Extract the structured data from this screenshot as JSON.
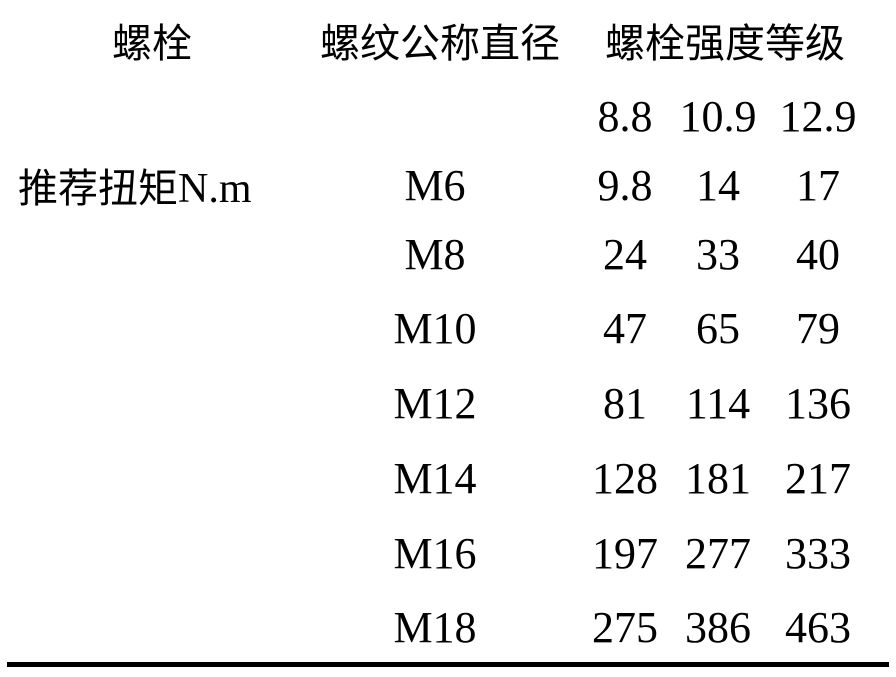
{
  "headers": {
    "bolt": "螺栓",
    "thread": "螺纹公称直径",
    "grade": "螺栓强度等级"
  },
  "grades": [
    "8.8",
    "10.9",
    "12.9"
  ],
  "row_label": {
    "text": "推荐扭矩",
    "unit": "N.m"
  },
  "rows": [
    {
      "size": "M6",
      "values": [
        "9.8",
        "14",
        "17"
      ]
    },
    {
      "size": "M8",
      "values": [
        "24",
        "33",
        "40"
      ]
    },
    {
      "size": "M10",
      "values": [
        "47",
        "65",
        "79"
      ]
    },
    {
      "size": "M12",
      "values": [
        "81",
        "114",
        "136"
      ]
    },
    {
      "size": "M14",
      "values": [
        "128",
        "181",
        "217"
      ]
    },
    {
      "size": "M16",
      "values": [
        "197",
        "277",
        "333"
      ]
    },
    {
      "size": "M18",
      "values": [
        "275",
        "386",
        "463"
      ]
    }
  ]
}
